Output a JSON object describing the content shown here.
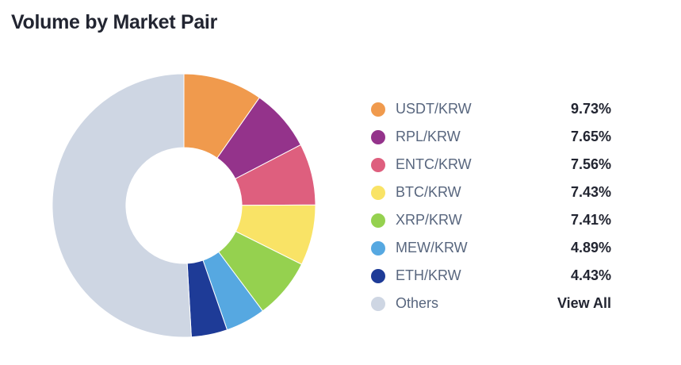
{
  "title": "Volume by Market Pair",
  "colors": {
    "background": "#FFFFFF",
    "text_primary": "#222531",
    "text_secondary": "#58667E"
  },
  "chart_data": {
    "type": "pie",
    "subtype": "donut",
    "title": "Volume by Market Pair",
    "start_angle_deg": 0,
    "direction": "clockwise",
    "inner_radius_ratio": 0.44,
    "legend_position": "right",
    "series": [
      {
        "label": "USDT/KRW",
        "value_pct": 9.73,
        "display_value": "9.73%",
        "color": "#F09A4D",
        "is_view_all_link": false
      },
      {
        "label": "RPL/KRW",
        "value_pct": 7.65,
        "display_value": "7.65%",
        "color": "#94338B",
        "is_view_all_link": false
      },
      {
        "label": "ENTC/KRW",
        "value_pct": 7.56,
        "display_value": "7.56%",
        "color": "#DE5F7E",
        "is_view_all_link": false
      },
      {
        "label": "BTC/KRW",
        "value_pct": 7.43,
        "display_value": "7.43%",
        "color": "#F9E366",
        "is_view_all_link": false
      },
      {
        "label": "XRP/KRW",
        "value_pct": 7.41,
        "display_value": "7.41%",
        "color": "#95D14F",
        "is_view_all_link": false
      },
      {
        "label": "MEW/KRW",
        "value_pct": 4.89,
        "display_value": "4.89%",
        "color": "#56A8E1",
        "is_view_all_link": false
      },
      {
        "label": "ETH/KRW",
        "value_pct": 4.43,
        "display_value": "4.43%",
        "color": "#1E3B97",
        "is_view_all_link": false
      },
      {
        "label": "Others",
        "value_pct": 50.9,
        "display_value": "View All",
        "color": "#CED6E3",
        "is_view_all_link": true
      }
    ]
  }
}
